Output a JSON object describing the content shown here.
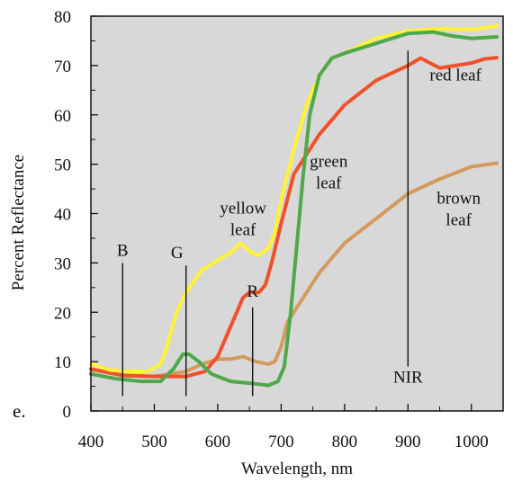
{
  "panel_label": "e.",
  "chart_data": {
    "type": "line",
    "title": "",
    "xlabel": "Wavelength, nm",
    "ylabel": "Percent Reflectance",
    "xlim": [
      400,
      1050
    ],
    "ylim": [
      0,
      80
    ],
    "grid": false,
    "background": "#d8d8d8",
    "x_ticks": [
      400,
      500,
      600,
      700,
      800,
      900,
      1000
    ],
    "y_ticks": [
      0,
      10,
      20,
      30,
      40,
      50,
      60,
      70,
      80
    ],
    "series": [
      {
        "label_lines": [
          "brown",
          "leaf"
        ],
        "color": "#d39a5e",
        "points": [
          [
            400,
            8.5
          ],
          [
            450,
            7.2
          ],
          [
            500,
            7
          ],
          [
            550,
            8
          ],
          [
            575,
            9.5
          ],
          [
            600,
            10.5
          ],
          [
            620,
            10.5
          ],
          [
            640,
            11
          ],
          [
            660,
            10
          ],
          [
            680,
            9.5
          ],
          [
            690,
            10
          ],
          [
            700,
            13
          ],
          [
            710,
            18
          ],
          [
            730,
            22
          ],
          [
            760,
            28
          ],
          [
            800,
            34
          ],
          [
            850,
            39
          ],
          [
            900,
            44
          ],
          [
            950,
            47
          ],
          [
            1000,
            49.5
          ],
          [
            1040,
            50.2
          ]
        ]
      },
      {
        "label_lines": [
          "red leaf"
        ],
        "color": "#f0502a",
        "points": [
          [
            400,
            8.5
          ],
          [
            450,
            7.2
          ],
          [
            500,
            7
          ],
          [
            550,
            7
          ],
          [
            580,
            8
          ],
          [
            600,
            11
          ],
          [
            620,
            17
          ],
          [
            640,
            23
          ],
          [
            650,
            24
          ],
          [
            665,
            24
          ],
          [
            675,
            25.5
          ],
          [
            685,
            30
          ],
          [
            700,
            38
          ],
          [
            720,
            48
          ],
          [
            760,
            56
          ],
          [
            800,
            62
          ],
          [
            850,
            67
          ],
          [
            900,
            70
          ],
          [
            920,
            71.5
          ],
          [
            935,
            70.5
          ],
          [
            950,
            69.5
          ],
          [
            975,
            70
          ],
          [
            1000,
            70.5
          ],
          [
            1020,
            71.3
          ],
          [
            1040,
            71.6
          ]
        ]
      },
      {
        "label_lines": [
          "yellow",
          "leaf"
        ],
        "color": "#fff238",
        "points": [
          [
            400,
            9.5
          ],
          [
            430,
            8.3
          ],
          [
            460,
            8
          ],
          [
            490,
            8
          ],
          [
            510,
            9.5
          ],
          [
            520,
            13
          ],
          [
            535,
            20
          ],
          [
            550,
            24
          ],
          [
            575,
            28.5
          ],
          [
            600,
            30.5
          ],
          [
            625,
            32.5
          ],
          [
            635,
            34
          ],
          [
            645,
            33
          ],
          [
            655,
            32
          ],
          [
            665,
            31.5
          ],
          [
            680,
            33
          ],
          [
            690,
            36
          ],
          [
            700,
            43
          ],
          [
            720,
            53
          ],
          [
            740,
            62
          ],
          [
            760,
            68
          ],
          [
            780,
            71.5
          ],
          [
            800,
            72.5
          ],
          [
            850,
            75.5
          ],
          [
            900,
            77
          ],
          [
            950,
            77.5
          ],
          [
            1000,
            77.3
          ],
          [
            1040,
            78
          ]
        ]
      },
      {
        "label_lines": [
          "green",
          "leaf"
        ],
        "color": "#4fa84a",
        "points": [
          [
            400,
            7.5
          ],
          [
            440,
            6.5
          ],
          [
            480,
            6
          ],
          [
            510,
            6
          ],
          [
            530,
            8.5
          ],
          [
            545,
            11.5
          ],
          [
            555,
            11.5
          ],
          [
            570,
            10
          ],
          [
            590,
            7.5
          ],
          [
            620,
            6
          ],
          [
            660,
            5.5
          ],
          [
            680,
            5.2
          ],
          [
            695,
            6
          ],
          [
            705,
            9
          ],
          [
            715,
            20
          ],
          [
            725,
            34
          ],
          [
            735,
            48
          ],
          [
            745,
            60
          ],
          [
            760,
            68
          ],
          [
            780,
            71.5
          ],
          [
            800,
            72.5
          ],
          [
            850,
            74.5
          ],
          [
            900,
            76.5
          ],
          [
            940,
            76.8
          ],
          [
            970,
            76
          ],
          [
            1000,
            75.5
          ],
          [
            1040,
            75.8
          ]
        ]
      }
    ],
    "bands": [
      {
        "label": "B",
        "x": 450,
        "y_top": 30,
        "y_bottom": 3
      },
      {
        "label": "G",
        "x": 550,
        "y_top": 29.5,
        "y_bottom": 3
      },
      {
        "label": "R",
        "x": 655,
        "y_top": 21,
        "y_bottom": 3
      },
      {
        "label": "NIR",
        "x": 900,
        "y_top": 73,
        "y_bottom": 9
      }
    ]
  }
}
